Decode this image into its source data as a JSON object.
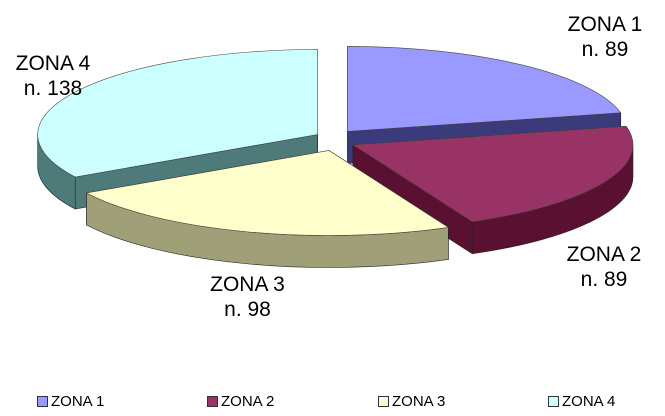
{
  "chart_data": {
    "type": "pie",
    "title": "",
    "categories": [
      "ZONA 1",
      "ZONA 2",
      "ZONA 3",
      "ZONA 4"
    ],
    "values": [
      89,
      89,
      98,
      138
    ],
    "value_labels": [
      "n. 89",
      "n. 89",
      "n. 98",
      "n. 138"
    ],
    "exploded": true,
    "three_d": true,
    "legend_position": "bottom",
    "colors": {
      "ZONA 1": "#9999ff",
      "ZONA 2": "#993366",
      "ZONA 3": "#ffffcc",
      "ZONA 4": "#ccffff"
    },
    "side_colors": {
      "ZONA 1": "#3b3b7c",
      "ZONA 2": "#5a1030",
      "ZONA 3": "#a0a078",
      "ZONA 4": "#4f7a7a"
    }
  }
}
